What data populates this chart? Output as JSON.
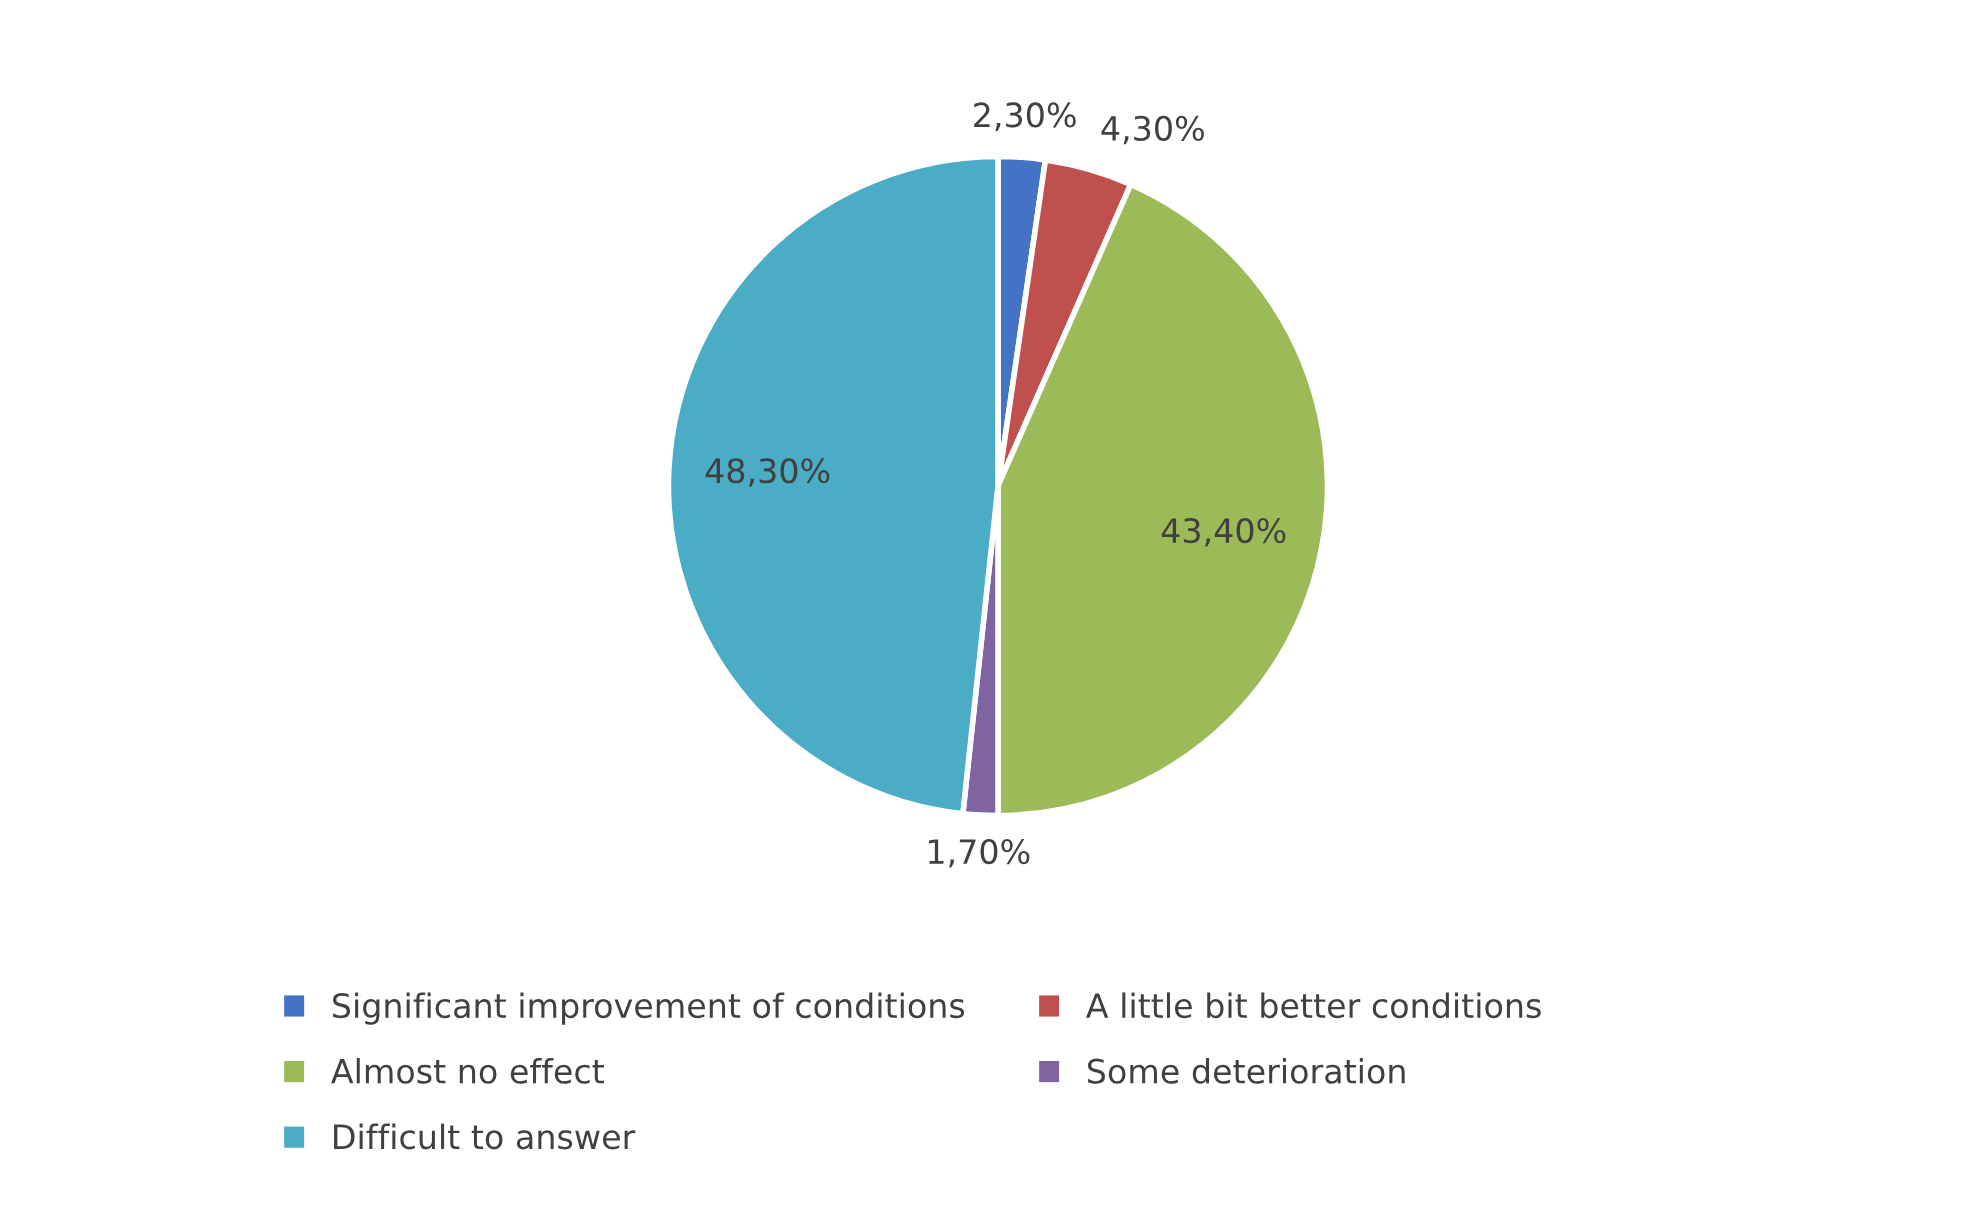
{
  "chart_data": {
    "type": "pie",
    "categories": [
      "Significant improvement of conditions",
      "A little bit better conditions",
      "Almost no effect",
      "Some deterioration",
      "Difficult to answer"
    ],
    "values": [
      2.3,
      4.3,
      43.4,
      1.7,
      48.3
    ],
    "colors": [
      "#4472c4",
      "#c0504d",
      "#9bbb59",
      "#8064a2",
      "#4bacc6"
    ],
    "value_labels": [
      "2,30%",
      "4,30%",
      "43,40%",
      "1,70%",
      "48,30%"
    ],
    "legend": "bottom"
  }
}
